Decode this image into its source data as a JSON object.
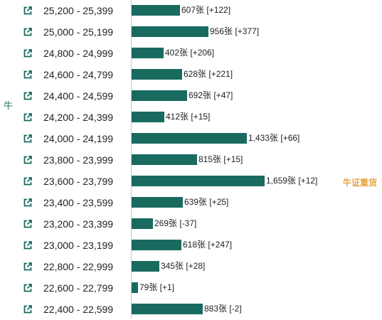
{
  "side_label": "牛",
  "special_tag": "牛证重货",
  "colors": {
    "bar": "#1a6b5f",
    "tag": "#e8a33d",
    "icon": "#1a6b5f",
    "side_label": "#2b7a6b"
  },
  "rows": [
    {
      "range": "25,200 - 25,399",
      "label": "607张 [+122]",
      "count": 607,
      "change": 122
    },
    {
      "range": "25,000 - 25,199",
      "label": "956张 [+377]",
      "count": 956,
      "change": 377
    },
    {
      "range": "24,800 - 24,999",
      "label": "402张 [+206]",
      "count": 402,
      "change": 206
    },
    {
      "range": "24,600 - 24,799",
      "label": "628张 [+221]",
      "count": 628,
      "change": 221
    },
    {
      "range": "24,400 - 24,599",
      "label": "692张 [+47]",
      "count": 692,
      "change": 47
    },
    {
      "range": "24,200 - 24,399",
      "label": "412张 [+15]",
      "count": 412,
      "change": 15
    },
    {
      "range": "24,000 - 24,199",
      "label": "1,433张 [+66]",
      "count": 1433,
      "change": 66
    },
    {
      "range": "23,800 - 23,999",
      "label": "815张 [+15]",
      "count": 815,
      "change": 15
    },
    {
      "range": "23,600 - 23,799",
      "label": "1,659张 [+12]",
      "count": 1659,
      "change": 12
    },
    {
      "range": "23,400 - 23,599",
      "label": "639张 [+25]",
      "count": 639,
      "change": 25
    },
    {
      "range": "23,200 - 23,399",
      "label": "269张 [-37]",
      "count": 269,
      "change": -37
    },
    {
      "range": "23,000 - 23,199",
      "label": "618张 [+247]",
      "count": 618,
      "change": 247
    },
    {
      "range": "22,800 - 22,999",
      "label": "345张 [+28]",
      "count": 345,
      "change": 28
    },
    {
      "range": "22,600 - 22,799",
      "label": "79张 [+1]",
      "count": 79,
      "change": 1
    },
    {
      "range": "22,400 - 22,599",
      "label": "883张 [-2]",
      "count": 883,
      "change": -2
    }
  ],
  "chart_data": {
    "type": "bar",
    "orientation": "horizontal",
    "categories": [
      "25,200 - 25,399",
      "25,000 - 25,199",
      "24,800 - 24,999",
      "24,600 - 24,799",
      "24,400 - 24,599",
      "24,200 - 24,399",
      "24,000 - 24,199",
      "23,800 - 23,999",
      "23,600 - 23,799",
      "23,400 - 23,599",
      "23,200 - 23,399",
      "23,000 - 23,199",
      "22,800 - 22,999",
      "22,600 - 22,799",
      "22,400 - 22,599"
    ],
    "values": [
      607,
      956,
      402,
      628,
      692,
      412,
      1433,
      815,
      1659,
      639,
      269,
      618,
      345,
      79,
      883
    ],
    "changes": [
      122,
      377,
      206,
      221,
      47,
      15,
      66,
      15,
      12,
      25,
      -37,
      247,
      28,
      1,
      -2
    ],
    "grid": false
  }
}
